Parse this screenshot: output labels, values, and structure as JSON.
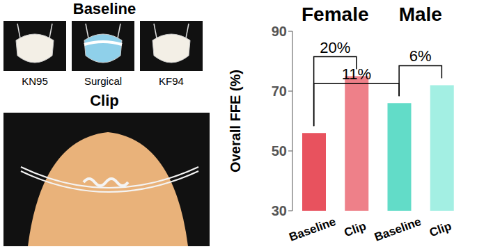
{
  "chart_data": {
    "type": "bar",
    "groups": [
      "Female",
      "Female",
      "Male",
      "Male"
    ],
    "categories": [
      "Baseline",
      "Clip",
      "Baseline",
      "Clip"
    ],
    "values": [
      56,
      75,
      66,
      72
    ],
    "colors": [
      "#e8525e",
      "#ee8089",
      "#62dcc8",
      "#a3efe3"
    ],
    "ylabel": "Overall FFE (%)",
    "ylim": [
      30,
      90
    ],
    "yticks": [
      30,
      50,
      70,
      90
    ],
    "grid": false,
    "annotations": [
      {
        "text": "20%",
        "from": 0,
        "to": 1
      },
      {
        "text": "6%",
        "from": 2,
        "to": 3
      },
      {
        "text": "11%",
        "from": 0,
        "to": 2
      }
    ]
  },
  "panel": {
    "title": "Baseline",
    "masks": [
      "KN95",
      "Surgical",
      "KF94"
    ],
    "clip_title": "Clip"
  }
}
